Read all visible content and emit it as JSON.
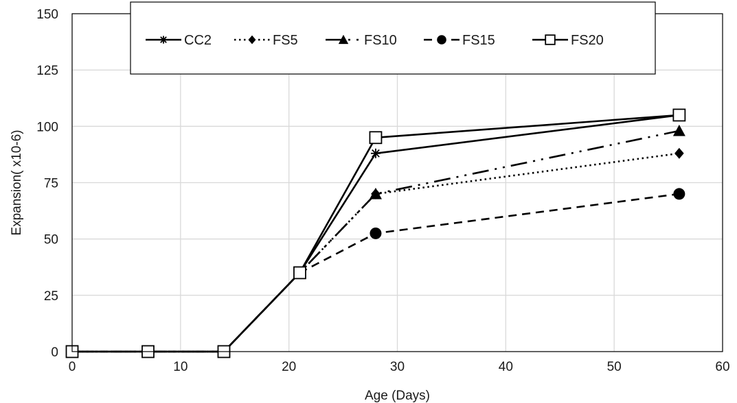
{
  "chart_data": {
    "type": "line",
    "title": "",
    "xlabel": "Age (Days)",
    "ylabel": "Expansion( x10-6)",
    "xlim": [
      0,
      60
    ],
    "ylim": [
      0,
      150
    ],
    "x_ticks": [
      0,
      10,
      20,
      30,
      40,
      50,
      60
    ],
    "y_ticks": [
      0,
      25,
      50,
      75,
      100,
      125,
      150
    ],
    "x_tick_labels": [
      "0",
      "10",
      "20",
      "30",
      "40",
      "50",
      "60"
    ],
    "y_tick_labels": [
      "0",
      "25",
      "50",
      "75",
      "100",
      "125",
      "150"
    ],
    "grid": true,
    "legend_position": "top",
    "colors": {
      "line": "#000000",
      "grid": "#d9d9d9",
      "frame": "#000000",
      "background": "#ffffff"
    },
    "series": [
      {
        "name": "CC2",
        "marker": "asterisk",
        "dash": "solid",
        "x": [
          0,
          7,
          14,
          21,
          28,
          56
        ],
        "y": [
          0,
          0,
          0,
          35,
          88,
          105
        ]
      },
      {
        "name": "FS5",
        "marker": "diamond",
        "dash": "dot",
        "x": [
          0,
          7,
          14,
          21,
          28,
          56
        ],
        "y": [
          0,
          0,
          0,
          35,
          70,
          88
        ]
      },
      {
        "name": "FS10",
        "marker": "triangle",
        "dash": "longdashdotdot",
        "x": [
          0,
          7,
          14,
          21,
          28,
          56
        ],
        "y": [
          0,
          0,
          0,
          35,
          70,
          98
        ]
      },
      {
        "name": "FS15",
        "marker": "circle",
        "dash": "dash",
        "x": [
          0,
          7,
          14,
          21,
          28,
          56
        ],
        "y": [
          0,
          0,
          0,
          35,
          52.5,
          70
        ]
      },
      {
        "name": "FS20",
        "marker": "square",
        "dash": "solid",
        "x": [
          0,
          7,
          14,
          21,
          28,
          56
        ],
        "y": [
          0,
          0,
          0,
          35,
          95,
          105
        ]
      }
    ]
  }
}
